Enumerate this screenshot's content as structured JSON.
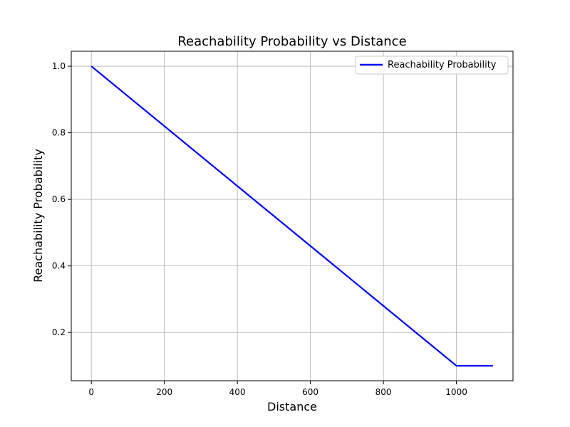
{
  "chart_data": {
    "type": "line",
    "title": "Reachability Probability vs Distance",
    "xlabel": "Distance",
    "ylabel": "Reachability Probability",
    "xlim": [
      -55,
      1155
    ],
    "ylim": [
      0.055,
      1.045
    ],
    "xticks": [
      0,
      200,
      400,
      600,
      800,
      1000
    ],
    "yticks": [
      0.2,
      0.4,
      0.6,
      0.8,
      1.0
    ],
    "xtick_labels": [
      "0",
      "200",
      "400",
      "600",
      "800",
      "1000"
    ],
    "ytick_labels": [
      "0.2",
      "0.4",
      "0.6",
      "0.8",
      "1.0"
    ],
    "grid": true,
    "legend_position": "top-right",
    "series": [
      {
        "name": "Reachability Probability",
        "color": "#0000ff",
        "x": [
          0,
          1000,
          1100
        ],
        "y": [
          1.0,
          0.1,
          0.1
        ]
      }
    ]
  }
}
